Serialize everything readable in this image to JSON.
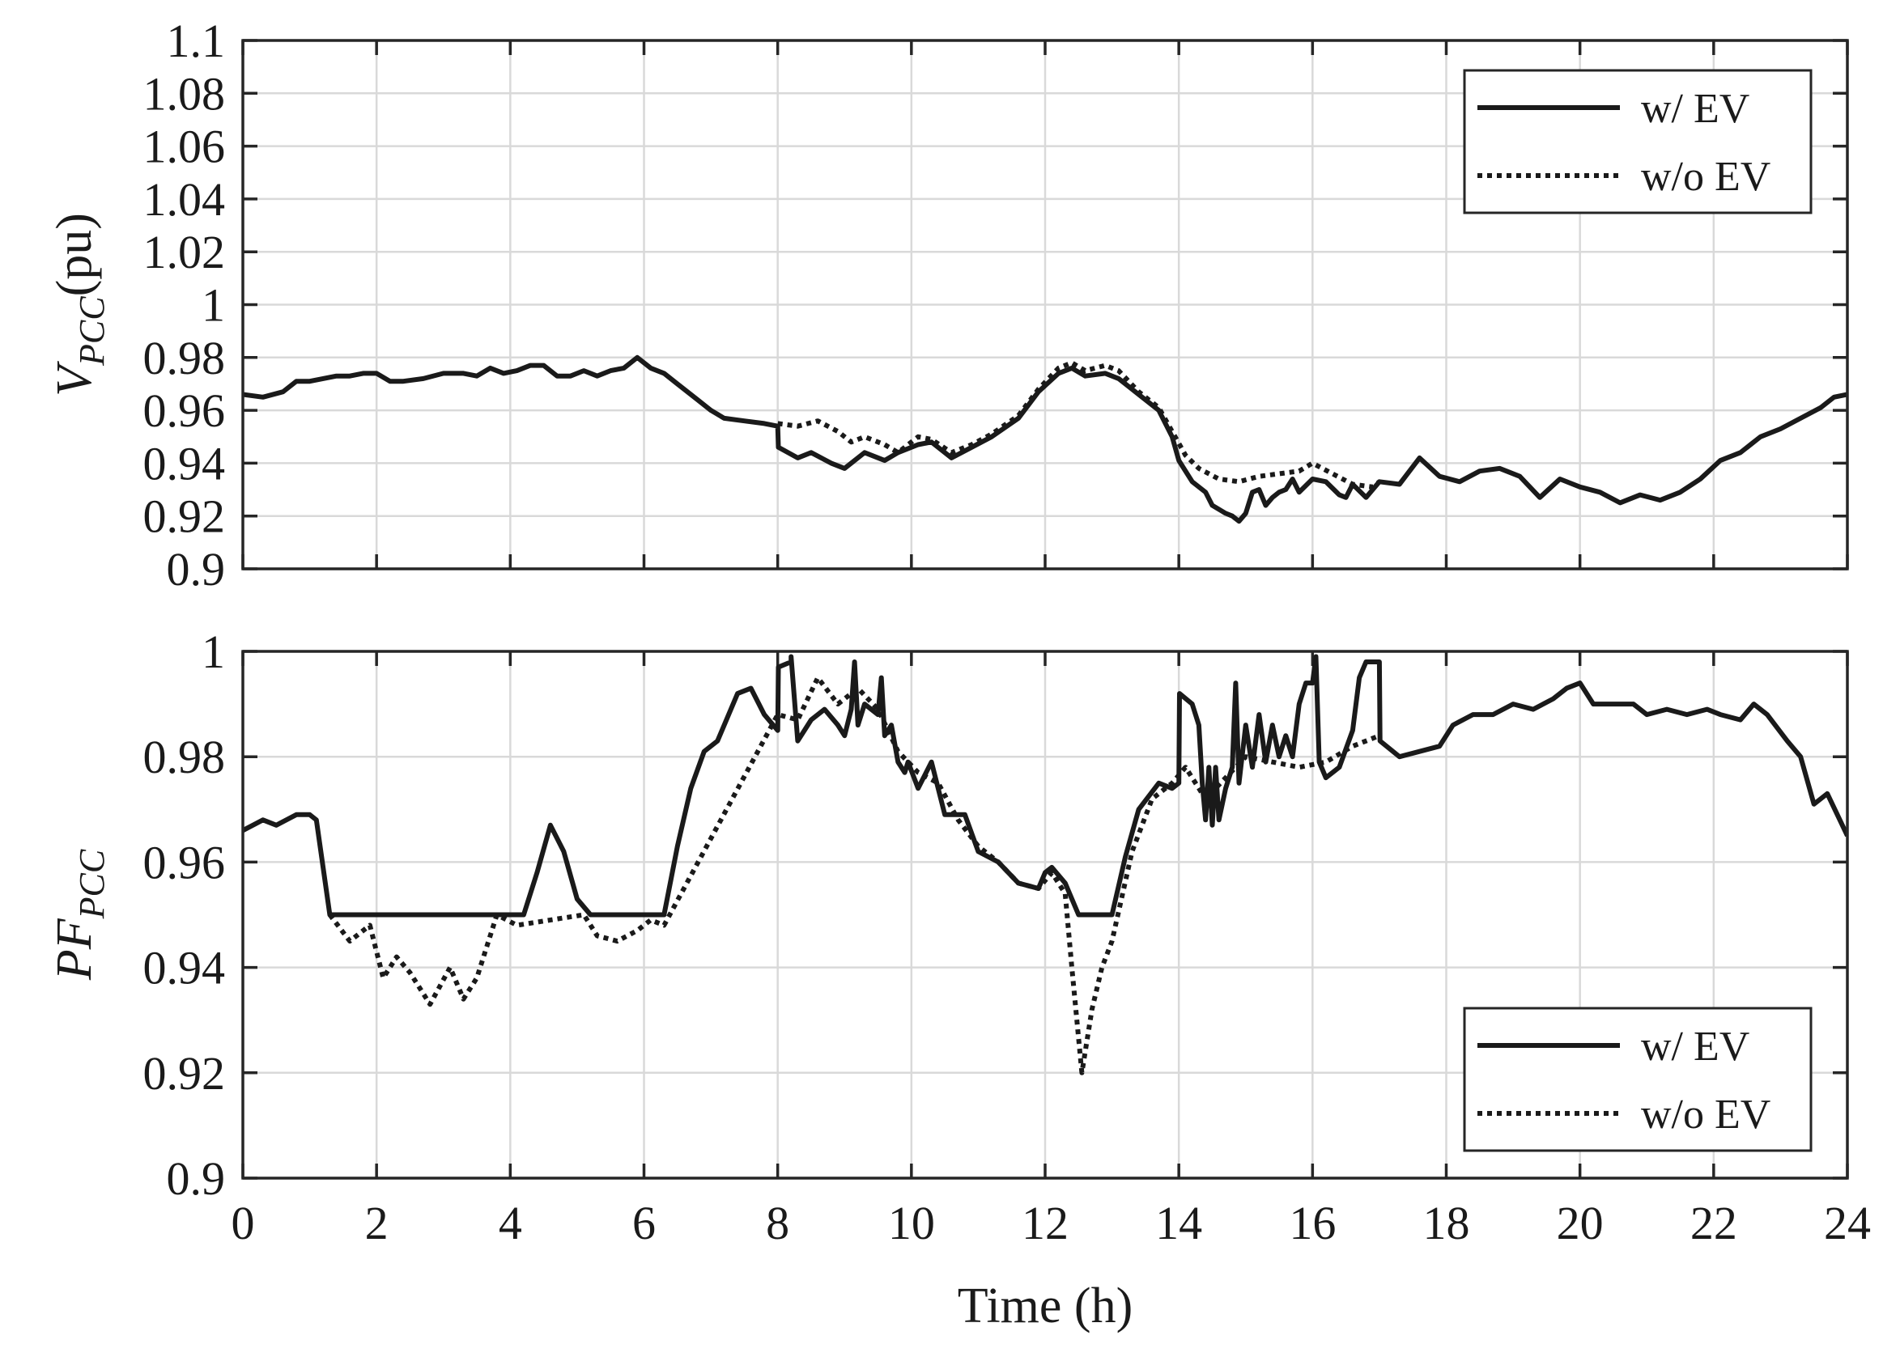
{
  "chart_data": [
    {
      "type": "line",
      "ylabel_main": "V",
      "ylabel_sub": "PCC",
      "ylabel_tail": "(pu)",
      "xlim": [
        0,
        24
      ],
      "ylim": [
        0.9,
        1.1
      ],
      "xticks": [
        0,
        2,
        4,
        6,
        8,
        10,
        12,
        14,
        16,
        18,
        20,
        22,
        24
      ],
      "yticks": [
        0.9,
        0.92,
        0.94,
        0.96,
        0.98,
        1,
        1.02,
        1.04,
        1.06,
        1.08,
        1.1
      ],
      "ytick_labels": [
        "0.9",
        "0.92",
        "0.94",
        "0.96",
        "0.98",
        "1",
        "1.02",
        "1.04",
        "1.06",
        "1.08",
        "1.1"
      ],
      "show_xtick_labels": false,
      "grid": true,
      "legend_position": "top-right",
      "series": [
        {
          "name": "w/ EV",
          "style": "solid",
          "x": [
            0,
            0.3,
            0.6,
            0.8,
            1.0,
            1.2,
            1.4,
            1.6,
            1.8,
            2.0,
            2.2,
            2.4,
            2.7,
            3.0,
            3.3,
            3.5,
            3.7,
            3.9,
            4.1,
            4.3,
            4.5,
            4.7,
            4.9,
            5.1,
            5.3,
            5.5,
            5.7,
            5.9,
            6.1,
            6.3,
            6.5,
            6.8,
            7.0,
            7.2,
            7.5,
            7.8,
            8.0,
            8.01,
            8.3,
            8.5,
            8.8,
            9.0,
            9.3,
            9.6,
            9.8,
            10.1,
            10.3,
            10.6,
            10.9,
            11.2,
            11.6,
            11.9,
            12.2,
            12.4,
            12.6,
            12.9,
            13.1,
            13.4,
            13.7,
            13.9,
            14.0,
            14.2,
            14.4,
            14.5,
            14.7,
            14.8,
            14.9,
            15.0,
            15.1,
            15.2,
            15.3,
            15.4,
            15.5,
            15.6,
            15.7,
            15.8,
            16.0,
            16.2,
            16.4,
            16.5,
            16.6,
            16.8,
            17.0,
            17.3,
            17.6,
            17.9,
            18.2,
            18.5,
            18.8,
            19.1,
            19.4,
            19.7,
            20.0,
            20.3,
            20.6,
            20.9,
            21.2,
            21.5,
            21.8,
            22.1,
            22.4,
            22.7,
            23.0,
            23.3,
            23.6,
            23.8,
            24.0
          ],
          "y": [
            0.966,
            0.965,
            0.967,
            0.971,
            0.971,
            0.972,
            0.973,
            0.973,
            0.974,
            0.974,
            0.971,
            0.971,
            0.972,
            0.974,
            0.974,
            0.973,
            0.976,
            0.974,
            0.975,
            0.977,
            0.977,
            0.973,
            0.973,
            0.975,
            0.973,
            0.975,
            0.976,
            0.98,
            0.976,
            0.974,
            0.97,
            0.964,
            0.96,
            0.957,
            0.956,
            0.955,
            0.954,
            0.946,
            0.942,
            0.944,
            0.94,
            0.938,
            0.944,
            0.941,
            0.944,
            0.947,
            0.948,
            0.942,
            0.946,
            0.95,
            0.957,
            0.967,
            0.974,
            0.976,
            0.973,
            0.974,
            0.972,
            0.966,
            0.96,
            0.95,
            0.941,
            0.933,
            0.929,
            0.924,
            0.921,
            0.92,
            0.918,
            0.921,
            0.929,
            0.93,
            0.924,
            0.927,
            0.929,
            0.93,
            0.934,
            0.929,
            0.934,
            0.933,
            0.928,
            0.927,
            0.932,
            0.927,
            0.933,
            0.932,
            0.942,
            0.935,
            0.933,
            0.937,
            0.938,
            0.935,
            0.927,
            0.934,
            0.931,
            0.929,
            0.925,
            0.928,
            0.926,
            0.929,
            0.934,
            0.941,
            0.944,
            0.95,
            0.953,
            0.957,
            0.961,
            0.965,
            0.966
          ]
        },
        {
          "name": "w/o EV",
          "style": "dotted",
          "x": [
            8.0,
            8.3,
            8.6,
            8.9,
            9.1,
            9.3,
            9.6,
            9.8,
            10.1,
            10.3,
            10.6,
            10.9,
            11.2,
            11.6,
            11.9,
            12.2,
            12.4,
            12.6,
            12.9,
            13.1,
            13.4,
            13.7,
            13.9,
            14.1,
            14.3,
            14.6,
            14.9,
            15.2,
            15.5,
            15.8,
            16.0,
            16.3,
            16.6,
            16.9,
            17.0
          ],
          "y": [
            0.955,
            0.954,
            0.956,
            0.952,
            0.948,
            0.95,
            0.947,
            0.944,
            0.95,
            0.949,
            0.944,
            0.947,
            0.951,
            0.958,
            0.968,
            0.976,
            0.978,
            0.975,
            0.977,
            0.975,
            0.967,
            0.961,
            0.952,
            0.943,
            0.938,
            0.934,
            0.933,
            0.935,
            0.936,
            0.937,
            0.94,
            0.936,
            0.932,
            0.931,
            0.933
          ]
        }
      ]
    },
    {
      "type": "line",
      "ylabel_main": "PF",
      "ylabel_sub": "PCC",
      "ylabel_tail": "",
      "xlabel": "Time (h)",
      "xlim": [
        0,
        24
      ],
      "ylim": [
        0.9,
        1.0
      ],
      "xticks": [
        0,
        2,
        4,
        6,
        8,
        10,
        12,
        14,
        16,
        18,
        20,
        22,
        24
      ],
      "xtick_labels": [
        "0",
        "2",
        "4",
        "6",
        "8",
        "10",
        "12",
        "14",
        "16",
        "18",
        "20",
        "22",
        "24"
      ],
      "yticks": [
        0.9,
        0.92,
        0.94,
        0.96,
        0.98,
        1
      ],
      "ytick_labels": [
        "0.9",
        "0.92",
        "0.94",
        "0.96",
        "0.98",
        "1"
      ],
      "show_xtick_labels": true,
      "grid": true,
      "legend_position": "bottom-right",
      "series": [
        {
          "name": "w/ EV",
          "style": "solid",
          "x": [
            0,
            0.3,
            0.5,
            0.8,
            1.0,
            1.1,
            1.3,
            1.5,
            1.8,
            2.1,
            2.5,
            3.0,
            3.5,
            3.8,
            4.0,
            4.2,
            4.4,
            4.6,
            4.8,
            5.0,
            5.2,
            5.5,
            5.8,
            6.0,
            6.3,
            6.5,
            6.7,
            6.9,
            7.1,
            7.4,
            7.6,
            7.8,
            8.0,
            8.01,
            8.2,
            8.2,
            8.3,
            8.5,
            8.7,
            8.9,
            9.0,
            9.1,
            9.15,
            9.2,
            9.3,
            9.5,
            9.55,
            9.6,
            9.7,
            9.8,
            9.9,
            9.95,
            10.1,
            10.3,
            10.5,
            10.8,
            11.0,
            11.3,
            11.6,
            11.9,
            12.0,
            12.1,
            12.3,
            12.5,
            12.7,
            13.0,
            13.2,
            13.4,
            13.7,
            13.9,
            14.0,
            14.01,
            14.2,
            14.3,
            14.35,
            14.4,
            14.45,
            14.5,
            14.55,
            14.6,
            14.7,
            14.8,
            14.85,
            14.9,
            15.0,
            15.1,
            15.2,
            15.3,
            15.4,
            15.5,
            15.6,
            15.7,
            15.8,
            15.9,
            16.0,
            16.05,
            16.1,
            16.2,
            16.4,
            16.6,
            16.7,
            16.8,
            17.0,
            17.01,
            17.3,
            17.6,
            17.9,
            18.1,
            18.4,
            18.7,
            19.0,
            19.3,
            19.6,
            19.8,
            20.0,
            20.2,
            20.6,
            20.8,
            21.0,
            21.3,
            21.6,
            21.9,
            22.1,
            22.4,
            22.6,
            22.8,
            23.1,
            23.3,
            23.5,
            23.7,
            24.0
          ],
          "y": [
            0.966,
            0.968,
            0.967,
            0.969,
            0.969,
            0.968,
            0.95,
            0.95,
            0.95,
            0.95,
            0.95,
            0.95,
            0.95,
            0.95,
            0.95,
            0.95,
            0.958,
            0.967,
            0.962,
            0.953,
            0.95,
            0.95,
            0.95,
            0.95,
            0.95,
            0.963,
            0.974,
            0.981,
            0.983,
            0.992,
            0.993,
            0.988,
            0.985,
            0.997,
            0.998,
            0.999,
            0.983,
            0.987,
            0.989,
            0.986,
            0.984,
            0.989,
            0.998,
            0.986,
            0.99,
            0.988,
            0.995,
            0.984,
            0.986,
            0.979,
            0.977,
            0.979,
            0.974,
            0.979,
            0.969,
            0.969,
            0.962,
            0.96,
            0.956,
            0.955,
            0.958,
            0.959,
            0.956,
            0.95,
            0.95,
            0.95,
            0.961,
            0.97,
            0.975,
            0.974,
            0.975,
            0.992,
            0.99,
            0.986,
            0.975,
            0.968,
            0.978,
            0.967,
            0.978,
            0.968,
            0.974,
            0.978,
            0.994,
            0.975,
            0.986,
            0.978,
            0.988,
            0.979,
            0.986,
            0.98,
            0.984,
            0.98,
            0.99,
            0.994,
            0.994,
            0.999,
            0.979,
            0.976,
            0.978,
            0.985,
            0.995,
            0.998,
            0.998,
            0.983,
            0.98,
            0.981,
            0.982,
            0.986,
            0.988,
            0.988,
            0.99,
            0.989,
            0.991,
            0.993,
            0.994,
            0.99,
            0.99,
            0.99,
            0.988,
            0.989,
            0.988,
            0.989,
            0.988,
            0.987,
            0.99,
            0.988,
            0.983,
            0.98,
            0.971,
            0.973,
            0.965
          ]
        },
        {
          "name": "w/o EV",
          "style": "dotted",
          "x": [
            1.3,
            1.6,
            1.9,
            2.1,
            2.3,
            2.5,
            2.8,
            3.1,
            3.3,
            3.5,
            3.8,
            4.1,
            5.1,
            5.3,
            5.6,
            5.9,
            6.1,
            6.3,
            8.0,
            8.3,
            8.6,
            8.9,
            9.2,
            9.5,
            9.8,
            10.1,
            10.4,
            10.7,
            11.0,
            11.3,
            11.6,
            11.9,
            12.1,
            12.3,
            12.4,
            12.55,
            12.7,
            12.85,
            13.0,
            13.3,
            13.6,
            13.9,
            14.1,
            14.4,
            14.7,
            15.0,
            15.4,
            15.8,
            16.2,
            16.6,
            17.0
          ],
          "y": [
            0.95,
            0.945,
            0.948,
            0.938,
            0.942,
            0.939,
            0.933,
            0.94,
            0.934,
            0.938,
            0.95,
            0.948,
            0.95,
            0.946,
            0.945,
            0.947,
            0.949,
            0.948,
            0.988,
            0.987,
            0.995,
            0.99,
            0.993,
            0.989,
            0.981,
            0.977,
            0.975,
            0.968,
            0.963,
            0.96,
            0.956,
            0.955,
            0.958,
            0.954,
            0.94,
            0.92,
            0.932,
            0.94,
            0.945,
            0.962,
            0.972,
            0.975,
            0.978,
            0.972,
            0.976,
            0.98,
            0.979,
            0.978,
            0.979,
            0.982,
            0.984
          ]
        }
      ]
    }
  ]
}
